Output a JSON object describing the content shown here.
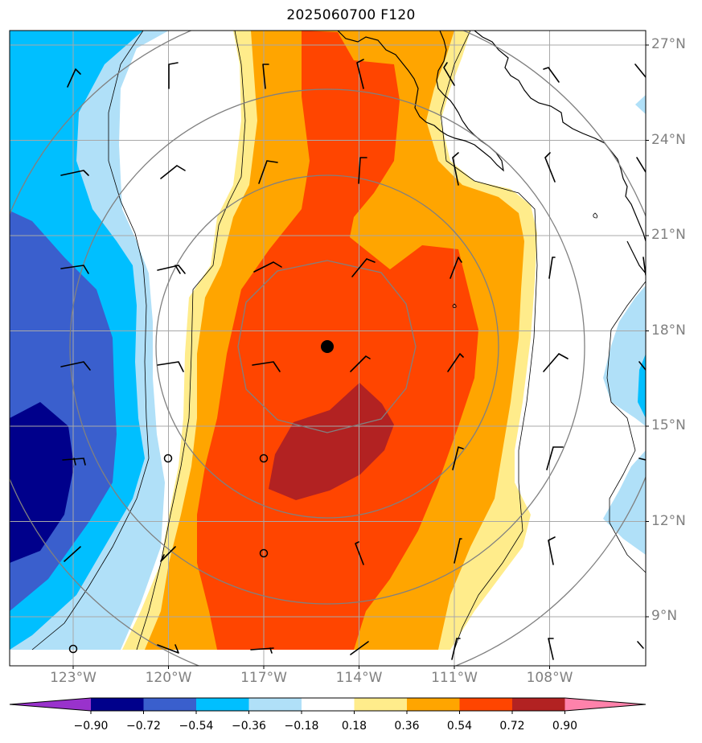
{
  "title": "2025060700 F120",
  "map": {
    "lat_labels": [
      "27°N",
      "24°N",
      "21°N",
      "18°N",
      "15°N",
      "12°N",
      "9°N"
    ],
    "lon_labels": [
      "123°W",
      "120°W",
      "117°W",
      "114°W",
      "111°W",
      "108°W"
    ],
    "storm_center": {
      "lon": -115,
      "lat": 17.5
    },
    "extent": {
      "lon_min": -125,
      "lon_max": -105,
      "lat_min": 7.5,
      "lat_max": 27.5
    },
    "range_rings": "concentric rings around storm center",
    "gridlines": true,
    "coastline": true
  },
  "colorbar": {
    "tick_labels": [
      "−0.90",
      "−0.72",
      "−0.54",
      "−0.36",
      "−0.18",
      "0.18",
      "0.36",
      "0.54",
      "0.72",
      "0.90"
    ],
    "colors": [
      "#9932cc",
      "#00008b",
      "#3a5fcd",
      "#00bfff",
      "#b0e0f8",
      "#ffffff",
      "#ffec8b",
      "#ffa500",
      "#ff4500",
      "#b22222",
      "#ff82ab"
    ],
    "extend": "both"
  }
}
